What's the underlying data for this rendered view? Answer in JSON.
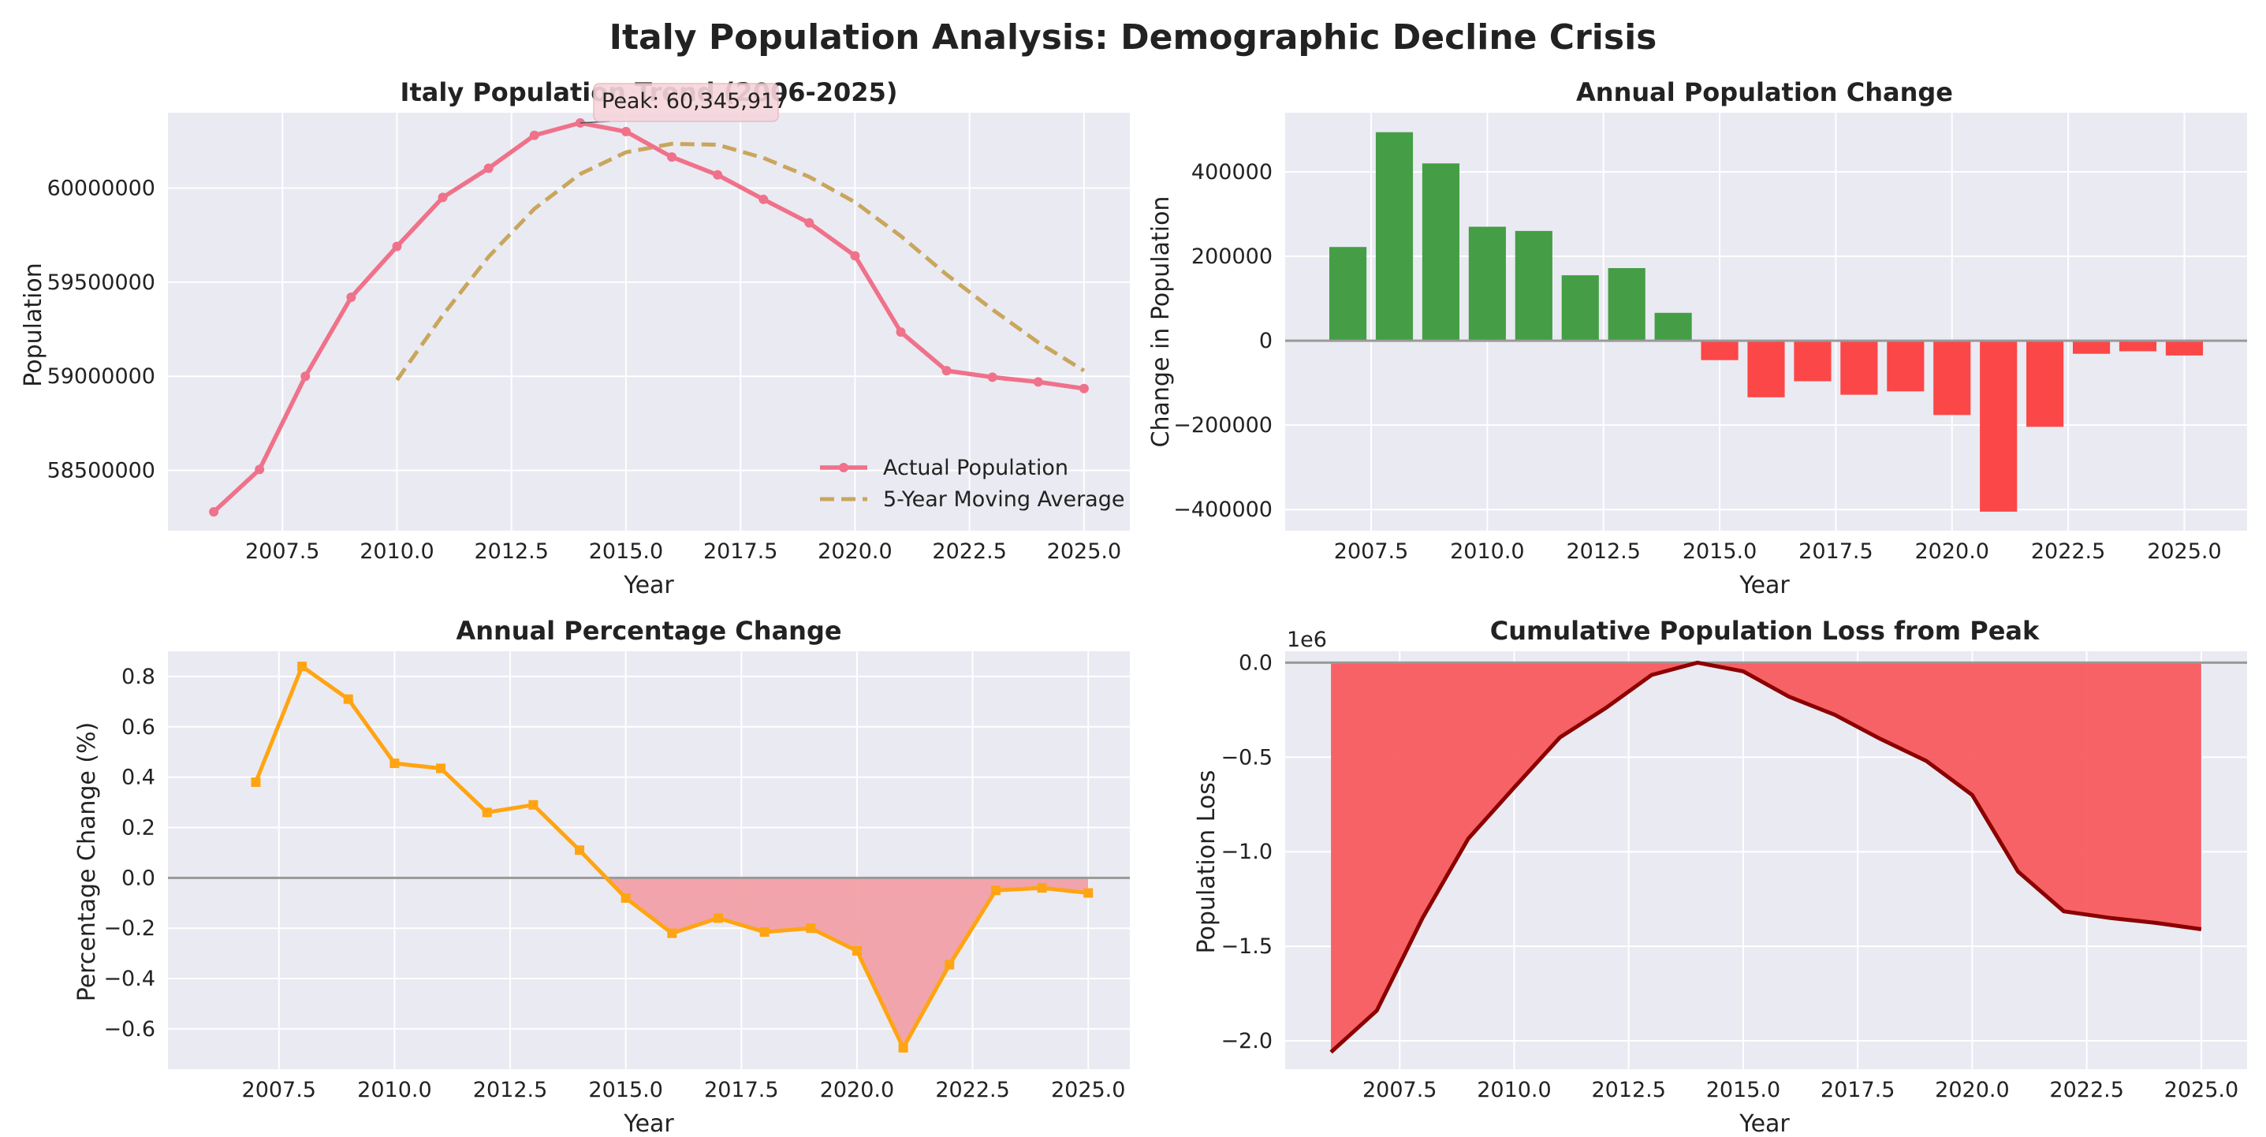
{
  "suptitle": "Italy Population Analysis: Demographic Decline Crisis",
  "colors": {
    "actual": "#f0718a",
    "moving_avg": "#c9a65d",
    "positive": "#459e45",
    "negative": "#fb4747",
    "pct_line": "#ffa412",
    "pct_fill": "#f1a0a7",
    "loss_fill": "#f75b5e",
    "loss_line": "#8b0000",
    "zero_line": "#999999",
    "panel_bg": "#eaeaf2"
  },
  "chart_data": [
    {
      "id": "trend",
      "type": "line",
      "title": "Italy Population Trend (2006-2025)",
      "xlabel": "Year",
      "ylabel": "Population",
      "xlim": [
        2005,
        2026
      ],
      "ylim": [
        58180000,
        60400000
      ],
      "xticks": [
        2007.5,
        2010.0,
        2012.5,
        2015.0,
        2017.5,
        2020.0,
        2022.5,
        2025.0
      ],
      "xtick_labels": [
        "2007.5",
        "2010.0",
        "2012.5",
        "2015.0",
        "2017.5",
        "2020.0",
        "2022.5",
        "2025.0"
      ],
      "yticks": [
        58500000,
        59000000,
        59500000,
        60000000
      ],
      "ytick_labels": [
        "58500000",
        "59000000",
        "59500000",
        "60000000"
      ],
      "series": [
        {
          "name": "Actual Population",
          "x": [
            2006,
            2007,
            2008,
            2009,
            2010,
            2011,
            2012,
            2013,
            2014,
            2015,
            2016,
            2017,
            2018,
            2019,
            2020,
            2021,
            2022,
            2023,
            2024,
            2025
          ],
          "values": [
            58280000,
            58505000,
            59000000,
            59420000,
            59690000,
            59950000,
            60105000,
            60280000,
            60345917,
            60300000,
            60165000,
            60070000,
            59940000,
            59815000,
            59640000,
            59235000,
            59030000,
            58995000,
            58970000,
            58935000
          ]
        },
        {
          "name": "5-Year Moving Average",
          "x": [
            2010,
            2011,
            2012,
            2013,
            2014,
            2015,
            2016,
            2017,
            2018,
            2019,
            2020,
            2021,
            2022,
            2023,
            2024,
            2025
          ],
          "values": [
            58980000,
            59325000,
            59635000,
            59890000,
            60075000,
            60190000,
            60235000,
            60230000,
            60160000,
            60060000,
            59925000,
            59745000,
            59540000,
            59355000,
            59180000,
            59030000
          ]
        }
      ],
      "annotation": {
        "text": "Peak: 60,345,917",
        "x": 2014,
        "y": 60345917
      },
      "legend": "lower-right"
    },
    {
      "id": "annual-change",
      "type": "bar",
      "title": "Annual Population Change",
      "xlabel": "Year",
      "ylabel": "Change in Population",
      "xlim": [
        2005.65,
        2026.35
      ],
      "ylim": [
        -450000,
        540000
      ],
      "xticks": [
        2007.5,
        2010.0,
        2012.5,
        2015.0,
        2017.5,
        2020.0,
        2022.5,
        2025.0
      ],
      "xtick_labels": [
        "2007.5",
        "2010.0",
        "2012.5",
        "2015.0",
        "2017.5",
        "2020.0",
        "2022.5",
        "2025.0"
      ],
      "yticks": [
        -400000,
        -200000,
        0,
        200000,
        400000
      ],
      "ytick_labels": [
        "−400000",
        "−200000",
        "0",
        "200000",
        "400000"
      ],
      "x": [
        2007,
        2008,
        2009,
        2010,
        2011,
        2012,
        2013,
        2014,
        2015,
        2016,
        2017,
        2018,
        2019,
        2020,
        2021,
        2022,
        2023,
        2024,
        2025
      ],
      "values": [
        222000,
        494000,
        420000,
        270000,
        260000,
        155000,
        172000,
        66000,
        -46000,
        -134000,
        -96000,
        -128000,
        -120000,
        -176000,
        -405000,
        -204000,
        -31000,
        -25000,
        -35000
      ]
    },
    {
      "id": "pct-change",
      "type": "line",
      "title": "Annual Percentage Change",
      "xlabel": "Year",
      "ylabel": "Percentage Change (%)",
      "xlim": [
        2005.1,
        2025.9
      ],
      "ylim": [
        -0.76,
        0.9
      ],
      "xticks": [
        2007.5,
        2010.0,
        2012.5,
        2015.0,
        2017.5,
        2020.0,
        2022.5,
        2025.0
      ],
      "xtick_labels": [
        "2007.5",
        "2010.0",
        "2012.5",
        "2015.0",
        "2017.5",
        "2020.0",
        "2022.5",
        "2025.0"
      ],
      "yticks": [
        -0.6,
        -0.4,
        -0.2,
        0.0,
        0.2,
        0.4,
        0.6,
        0.8
      ],
      "ytick_labels": [
        "−0.6",
        "−0.4",
        "−0.2",
        "0.0",
        "0.2",
        "0.4",
        "0.6",
        "0.8"
      ],
      "x": [
        2007,
        2008,
        2009,
        2010,
        2011,
        2012,
        2013,
        2014,
        2015,
        2016,
        2017,
        2018,
        2019,
        2020,
        2021,
        2022,
        2023,
        2024,
        2025
      ],
      "values": [
        0.38,
        0.84,
        0.71,
        0.455,
        0.435,
        0.26,
        0.29,
        0.11,
        -0.08,
        -0.22,
        -0.16,
        -0.215,
        -0.2,
        -0.29,
        -0.675,
        -0.345,
        -0.05,
        -0.04,
        -0.06
      ]
    },
    {
      "id": "cumulative-loss",
      "type": "area",
      "title": "Cumulative Population Loss from Peak",
      "xlabel": "Year",
      "ylabel": "Population Loss",
      "offset_label": "1e6",
      "xlim": [
        2005,
        2026
      ],
      "ylim": [
        -2.15,
        0.06
      ],
      "xticks": [
        2007.5,
        2010.0,
        2012.5,
        2015.0,
        2017.5,
        2020.0,
        2022.5,
        2025.0
      ],
      "xtick_labels": [
        "2007.5",
        "2010.0",
        "2012.5",
        "2015.0",
        "2017.5",
        "2020.0",
        "2022.5",
        "2025.0"
      ],
      "yticks": [
        -2.0,
        -1.5,
        -1.0,
        -0.5,
        0.0
      ],
      "ytick_labels": [
        "−2.0",
        "−1.5",
        "−1.0",
        "−0.5",
        "0.0"
      ],
      "x": [
        2006,
        2007,
        2008,
        2009,
        2010,
        2011,
        2012,
        2013,
        2014,
        2015,
        2016,
        2017,
        2018,
        2019,
        2020,
        2021,
        2022,
        2023,
        2024,
        2025
      ],
      "values": [
        -2.06,
        -1.84,
        -1.35,
        -0.93,
        -0.66,
        -0.395,
        -0.24,
        -0.065,
        0.0,
        -0.046,
        -0.18,
        -0.276,
        -0.404,
        -0.52,
        -0.7,
        -1.105,
        -1.315,
        -1.35,
        -1.376,
        -1.41
      ]
    }
  ]
}
